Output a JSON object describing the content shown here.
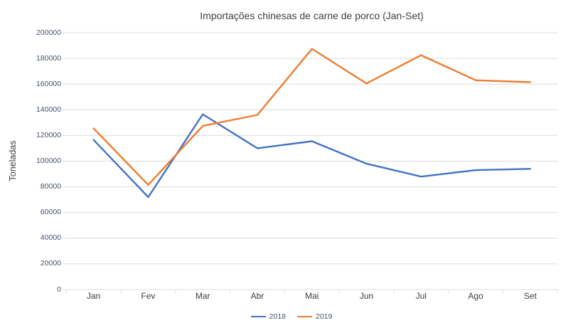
{
  "title": "Importações chinesas de carne de porco (Jan-Set)",
  "chart_data": {
    "type": "line",
    "title": "Importações chinesas de carne de porco (Jan-Set)",
    "xlabel": "",
    "ylabel": "Toneladas",
    "categories": [
      "Jan",
      "Fev",
      "Mar",
      "Abr",
      "Mai",
      "Jun",
      "Jul",
      "Ago",
      "Set"
    ],
    "series": [
      {
        "name": "2018",
        "color": "#4472c4",
        "values": [
          116500,
          72000,
          136500,
          110000,
          115500,
          98000,
          88000,
          93000,
          94000
        ]
      },
      {
        "name": "2019",
        "color": "#ed7d31",
        "values": [
          125500,
          81500,
          127500,
          136000,
          187500,
          160500,
          182500,
          163000,
          161500
        ]
      }
    ],
    "ylim": [
      0,
      200000
    ],
    "ytick_step": 20000,
    "ytick_labels": [
      "0",
      "20000",
      "40000",
      "60000",
      "80000",
      "100000",
      "120000",
      "140000",
      "160000",
      "180000",
      "200000"
    ],
    "grid": true,
    "legend_position": "bottom-center"
  },
  "colors": {
    "grid": "#dcdcdc",
    "axis_tick_text": "#44546a",
    "text": "#404040",
    "background": "#ffffff",
    "series_2018": "#4472c4",
    "series_2019": "#ed7d31"
  }
}
